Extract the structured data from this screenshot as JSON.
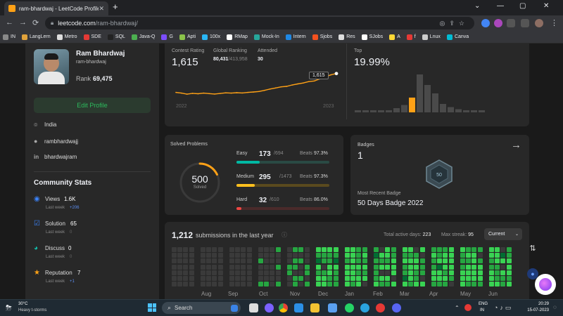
{
  "browser": {
    "tab_title": "ram-bhardwaj - LeetCode Profile",
    "tab_close": "✕",
    "new_tab": "+",
    "url_host": "leetcode.com",
    "url_path": "/ram-bhardwaj/",
    "bookmarks": [
      {
        "label": "IN",
        "color": "#888"
      },
      {
        "label": "LangLern",
        "color": "#e0a23b"
      },
      {
        "label": "Metro",
        "color": "#ddd"
      },
      {
        "label": "SDE",
        "color": "#e53935"
      },
      {
        "label": "SQL",
        "color": "#222"
      },
      {
        "label": "Java-Q",
        "color": "#4caf50"
      },
      {
        "label": "G",
        "color": "#7c4dff"
      },
      {
        "label": "Apti",
        "color": "#8bc34a"
      },
      {
        "label": "100x",
        "color": "#29b6f6"
      },
      {
        "label": "RMap",
        "color": "#fff"
      },
      {
        "label": "Mock-In",
        "color": "#26a69a"
      },
      {
        "label": "Intern",
        "color": "#1e88e5"
      },
      {
        "label": "Sjobs",
        "color": "#f4511e"
      },
      {
        "label": "Res",
        "color": "#ddd"
      },
      {
        "label": "SJobs",
        "color": "#fff"
      },
      {
        "label": "A",
        "color": "#fdd835"
      },
      {
        "label": "f",
        "color": "#e53935"
      },
      {
        "label": "Lnux",
        "color": "#ccc"
      },
      {
        "label": "Canva",
        "color": "#00bcd4"
      }
    ]
  },
  "profile": {
    "name": "Ram Bhardwaj",
    "username": "ram-bhardwaj",
    "rank_label": "Rank",
    "rank_value": "69,475",
    "edit_button": "Edit Profile",
    "location": "India",
    "github": "rambhardwajj",
    "linkedin": "bhardwajram"
  },
  "community": {
    "title": "Community Stats",
    "items": [
      {
        "label": "Views",
        "value": "1.6K",
        "sub": "Last week",
        "delta": "+206"
      },
      {
        "label": "Solution",
        "value": "65",
        "sub": "Last week",
        "delta": "0"
      },
      {
        "label": "Discuss",
        "value": "0",
        "sub": "Last week",
        "delta": "0"
      },
      {
        "label": "Reputation",
        "value": "7",
        "sub": "Last week",
        "delta": "+1"
      }
    ]
  },
  "contest": {
    "rating_label": "Contest Rating",
    "rating": "1,615",
    "global_label": "Global Ranking",
    "global_rank": "80,431",
    "global_total": "/413,958",
    "attended_label": "Attended",
    "attended": "30",
    "tooltip": "1,615",
    "year_start": "2022",
    "year_end": "2023",
    "top_label": "Top",
    "top_value": "19.99%"
  },
  "chart_data": {
    "type": "line",
    "title": "Contest Rating",
    "xlabel": "",
    "ylabel": "",
    "x": [
      1,
      2,
      3,
      4,
      5,
      6,
      7,
      8,
      9,
      10,
      11,
      12,
      13,
      14,
      15,
      16,
      17,
      18,
      19,
      20,
      21,
      22,
      23,
      24,
      25,
      26,
      27,
      28,
      29,
      30
    ],
    "values": [
      1475,
      1470,
      1462,
      1468,
      1465,
      1470,
      1466,
      1463,
      1467,
      1472,
      1470,
      1473,
      1471,
      1475,
      1478,
      1482,
      1490,
      1500,
      1508,
      1516,
      1520,
      1530,
      1538,
      1545,
      1555,
      1560,
      1575,
      1590,
      1605,
      1615
    ],
    "ylim": [
      1400,
      1650
    ]
  },
  "histogram": {
    "type": "bar",
    "values": [
      2,
      2,
      2,
      2,
      2,
      4,
      7,
      14,
      36,
      26,
      18,
      8,
      5,
      3,
      2,
      2,
      2
    ],
    "highlight_index": 7
  },
  "solved": {
    "title": "Solved Problems",
    "total": "500",
    "total_label": "Solved",
    "levels": [
      {
        "name": "Easy",
        "solved": "173",
        "total": "/694",
        "beats_label": "Beats",
        "beats": "97.3%",
        "fraction": 0.249,
        "color": "#00b8a3",
        "track": "#2a4a44"
      },
      {
        "name": "Medium",
        "solved": "295",
        "total": "/1473",
        "beats_label": "Beats",
        "beats": "97.3%",
        "fraction": 0.2,
        "color": "#ffc01e",
        "track": "#5a4a1e"
      },
      {
        "name": "Hard",
        "solved": "32",
        "total": "/610",
        "beats_label": "Beats",
        "beats": "86.0%",
        "fraction": 0.052,
        "color": "#ef4743",
        "track": "#4a2a2a"
      }
    ]
  },
  "badges": {
    "title": "Badges",
    "count": "1",
    "recent_label": "Most Recent Badge",
    "recent_name": "50 Days Badge 2022",
    "badge_text": "50"
  },
  "submissions": {
    "count": "1,212",
    "label": "submissions in the last year",
    "active_label": "Total active days:",
    "active": "223",
    "streak_label": "Max streak:",
    "streak": "95",
    "dropdown": "Current",
    "months": [
      "Aug",
      "Sep",
      "Oct",
      "Nov",
      "Dec",
      "Jan",
      "Feb",
      "Mar",
      "Apr",
      "May",
      "Jun"
    ]
  },
  "taskbar": {
    "weather_temp": "30°C",
    "weather_desc": "Heavy t-storms",
    "search": "Search",
    "lang1": "ENG",
    "lang2": "IN",
    "time": "20:29",
    "date": "15-07-2023"
  }
}
